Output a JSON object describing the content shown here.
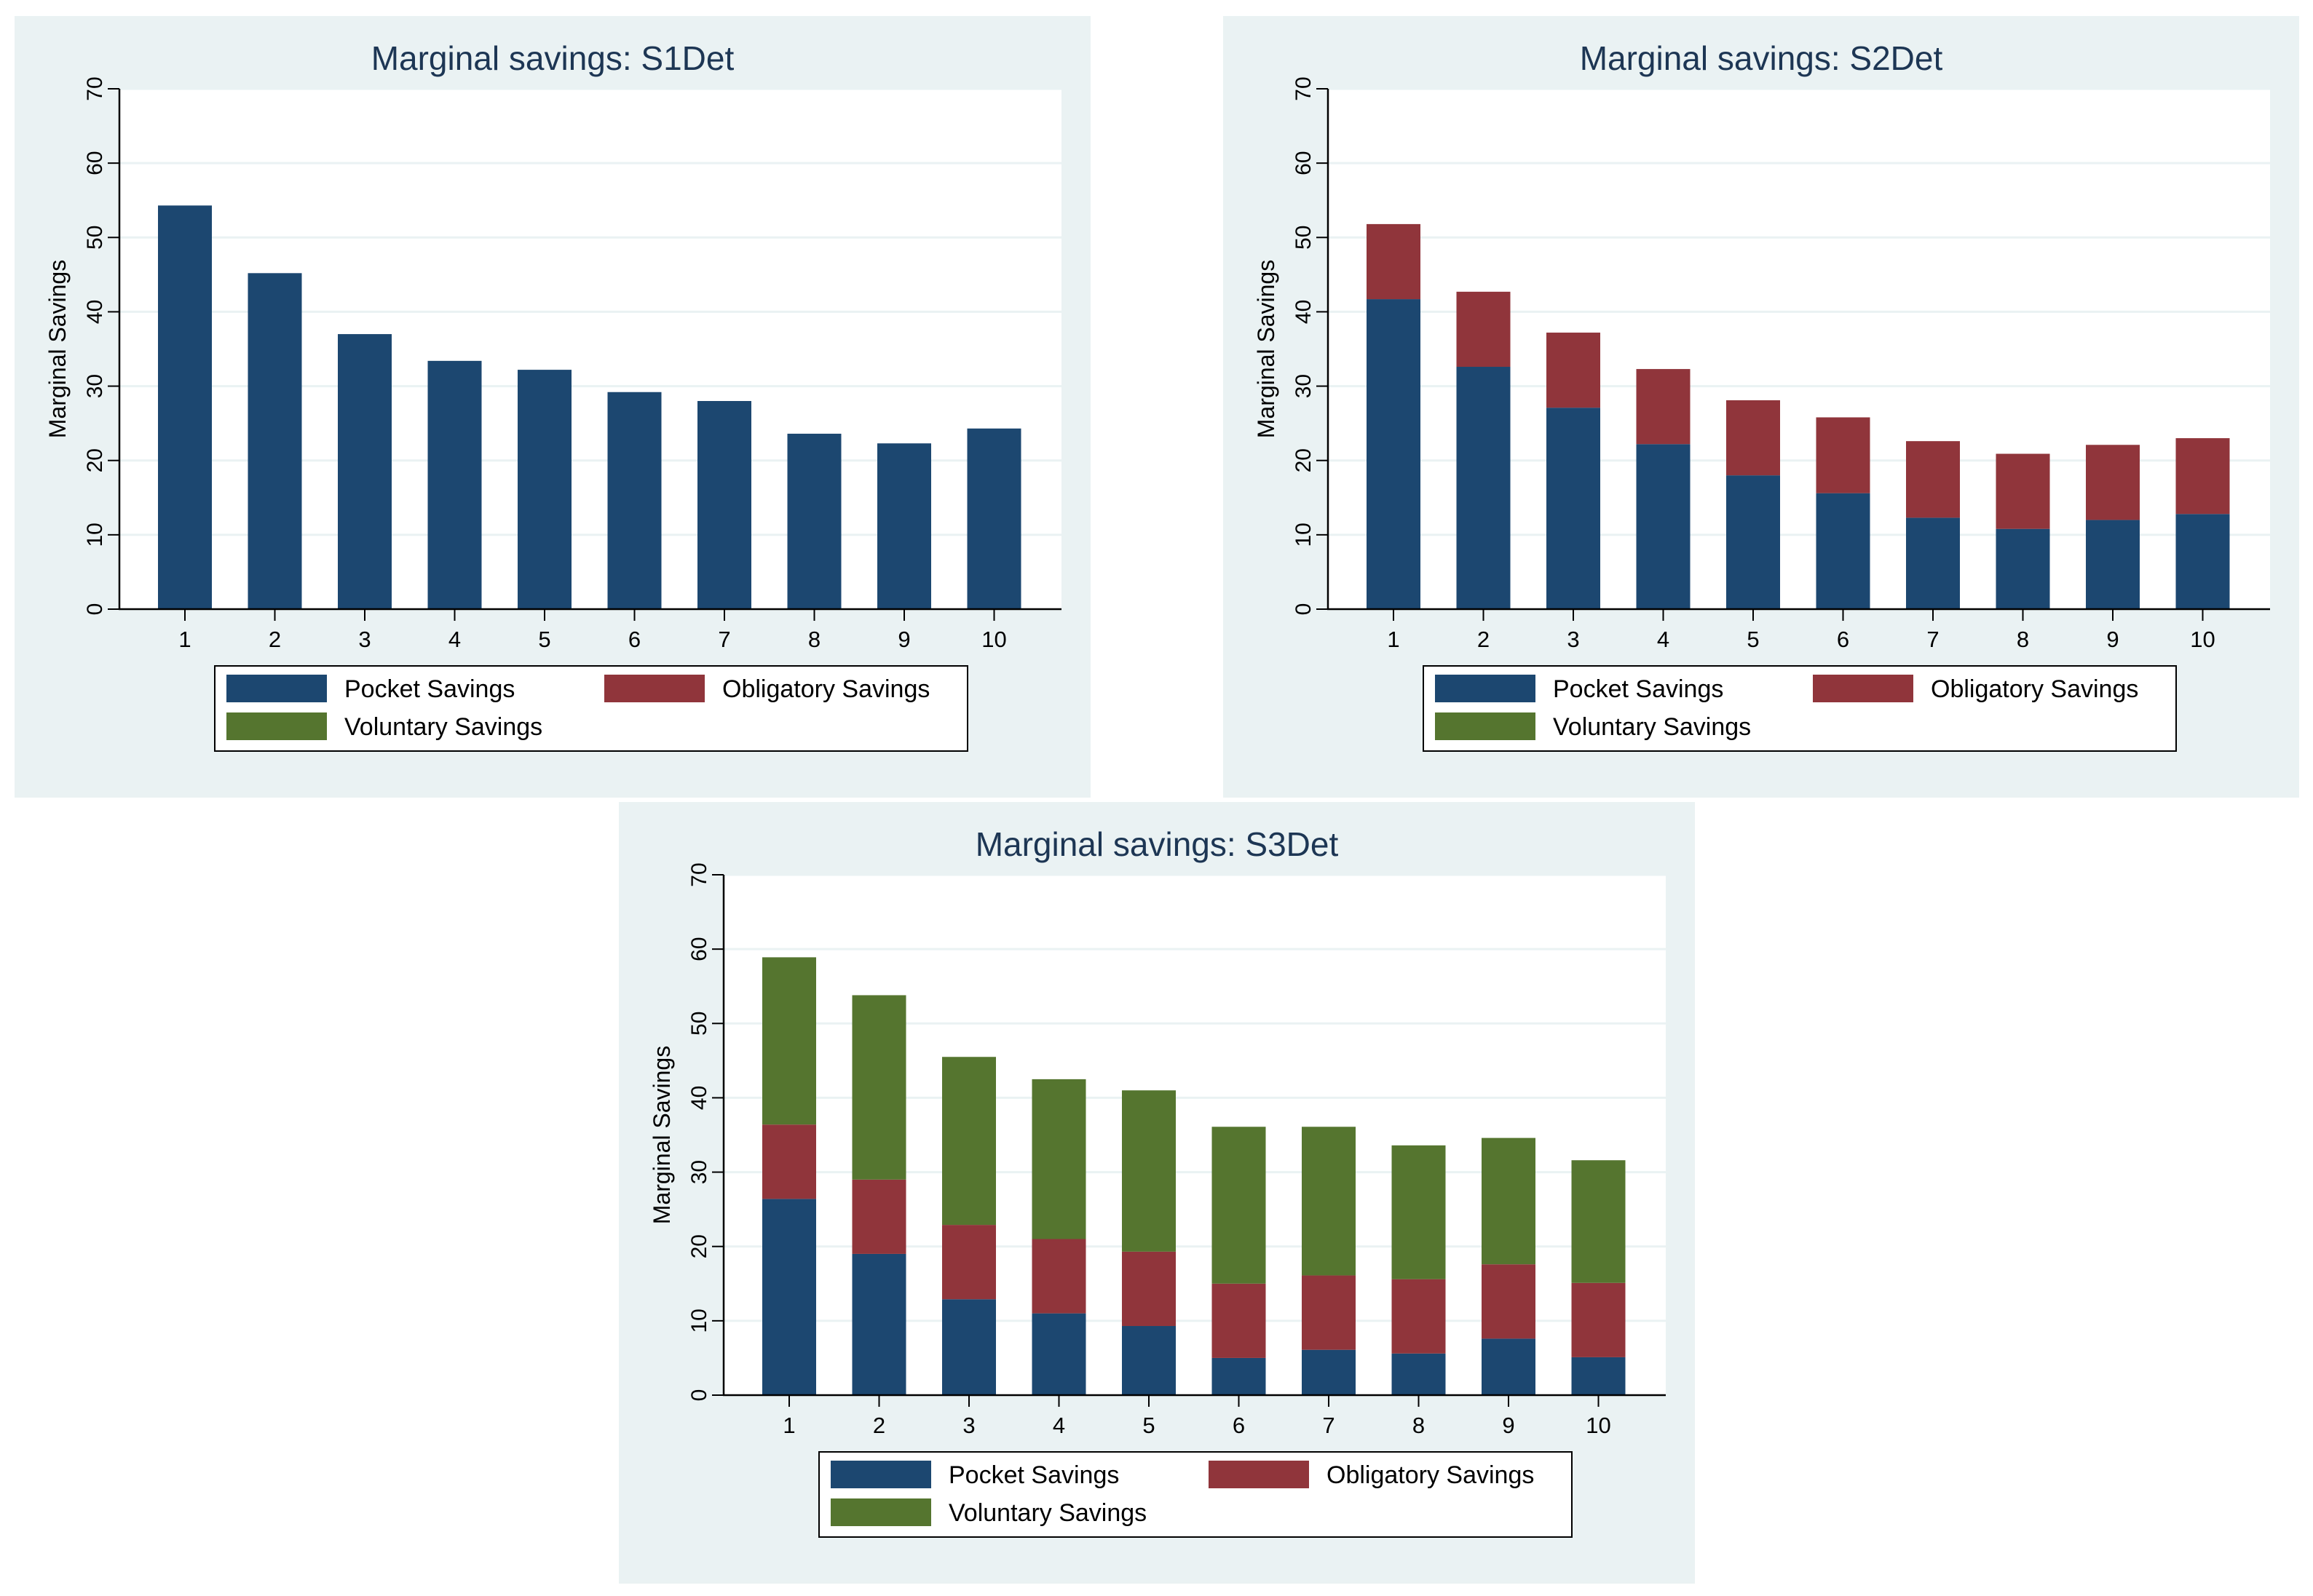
{
  "colors": {
    "pocket": "#1c4770",
    "obligatory": "#90353b",
    "voluntary": "#55752f",
    "title": "#1d3654",
    "axis": "#000000",
    "grid": "#eaf2f3",
    "plot_bg": "#ffffff",
    "panel_bg": "#eaf2f3"
  },
  "chart_data": [
    {
      "type": "bar",
      "stacked": true,
      "title": "Marginal savings: S1Det",
      "xlabel": "",
      "ylabel": "Marginal Savings",
      "ylim": [
        0,
        70
      ],
      "yticks": [
        "0",
        "10",
        "20",
        "30",
        "40",
        "50",
        "60",
        "70"
      ],
      "categories": [
        "1",
        "2",
        "3",
        "4",
        "5",
        "6",
        "7",
        "8",
        "9",
        "10"
      ],
      "grid": true,
      "legend_position": "bottom",
      "series": [
        {
          "name": "Pocket Savings",
          "color_key": "pocket",
          "values": [
            54.3,
            45.2,
            37.0,
            33.4,
            32.2,
            29.2,
            28.0,
            23.6,
            22.3,
            24.3
          ]
        },
        {
          "name": "Obligatory Savings",
          "color_key": "obligatory",
          "values": [
            0,
            0,
            0,
            0,
            0,
            0,
            0,
            0,
            0,
            0
          ]
        },
        {
          "name": "Voluntary Savings",
          "color_key": "voluntary",
          "values": [
            0,
            0,
            0,
            0,
            0,
            0,
            0,
            0,
            0,
            0
          ]
        }
      ]
    },
    {
      "type": "bar",
      "stacked": true,
      "title": "Marginal savings: S2Det",
      "xlabel": "",
      "ylabel": "Marginal Savings",
      "ylim": [
        0,
        70
      ],
      "yticks": [
        "0",
        "10",
        "20",
        "30",
        "40",
        "50",
        "60",
        "70"
      ],
      "categories": [
        "1",
        "2",
        "3",
        "4",
        "5",
        "6",
        "7",
        "8",
        "9",
        "10"
      ],
      "grid": true,
      "legend_position": "bottom",
      "series": [
        {
          "name": "Pocket Savings",
          "color_key": "pocket",
          "values": [
            41.7,
            32.6,
            27.1,
            22.2,
            18.0,
            15.6,
            12.3,
            10.8,
            12.0,
            12.8
          ]
        },
        {
          "name": "Obligatory Savings",
          "color_key": "obligatory",
          "values": [
            10.1,
            10.1,
            10.1,
            10.1,
            10.1,
            10.2,
            10.3,
            10.1,
            10.1,
            10.2
          ]
        },
        {
          "name": "Voluntary Savings",
          "color_key": "voluntary",
          "values": [
            0,
            0,
            0,
            0,
            0,
            0,
            0,
            0,
            0,
            0
          ]
        }
      ]
    },
    {
      "type": "bar",
      "stacked": true,
      "title": "Marginal savings: S3Det",
      "xlabel": "",
      "ylabel": "Marginal Savings",
      "ylim": [
        0,
        70
      ],
      "yticks": [
        "0",
        "10",
        "20",
        "30",
        "40",
        "50",
        "60",
        "70"
      ],
      "categories": [
        "1",
        "2",
        "3",
        "4",
        "5",
        "6",
        "7",
        "8",
        "9",
        "10"
      ],
      "grid": true,
      "legend_position": "bottom",
      "series": [
        {
          "name": "Pocket Savings",
          "color_key": "pocket",
          "values": [
            26.4,
            19.0,
            12.9,
            11.0,
            9.3,
            5.0,
            6.1,
            5.6,
            7.6,
            5.1
          ]
        },
        {
          "name": "Obligatory Savings",
          "color_key": "obligatory",
          "values": [
            10.0,
            10.0,
            10.0,
            10.0,
            10.0,
            10.0,
            10.0,
            10.0,
            10.0,
            10.0
          ]
        },
        {
          "name": "Voluntary Savings",
          "color_key": "voluntary",
          "values": [
            22.5,
            24.8,
            22.6,
            21.5,
            21.7,
            21.1,
            20.0,
            18.0,
            17.0,
            16.5
          ]
        }
      ]
    }
  ]
}
